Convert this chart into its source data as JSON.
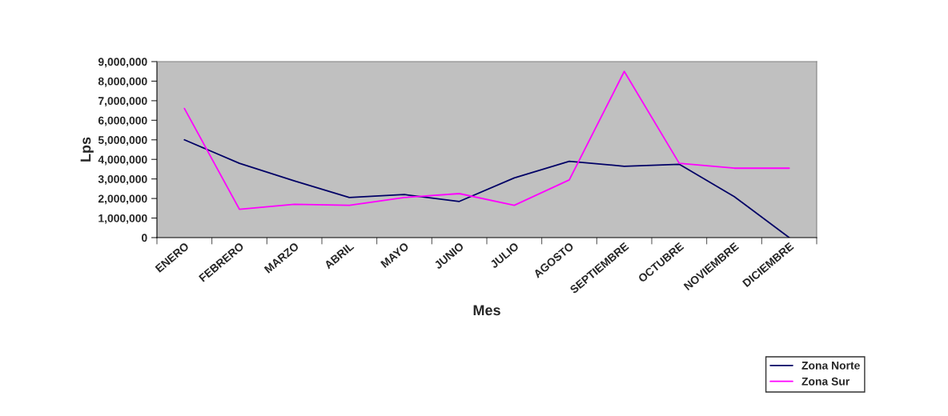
{
  "chart_data": {
    "type": "line",
    "xlabel": "Mes",
    "ylabel": "Lps",
    "categories": [
      "ENERO",
      "FEBRERO",
      "MARZO",
      "ABRIL",
      "MAYO",
      "JUNIO",
      "JULIO",
      "AGOSTO",
      "SEPTIEMBRE",
      "OCTUBRE",
      "NOVIEMBRE",
      "DICIEMBRE"
    ],
    "series": [
      {
        "name": "Zona Norte",
        "color": "#000066",
        "values": [
          5000000,
          3800000,
          2900000,
          2050000,
          2200000,
          1850000,
          3050000,
          3900000,
          3650000,
          3750000,
          2100000,
          0
        ]
      },
      {
        "name": "Zona Sur",
        "color": "#ff00ff",
        "values": [
          6600000,
          1450000,
          1700000,
          1650000,
          2050000,
          2250000,
          1650000,
          2950000,
          8500000,
          3800000,
          3550000,
          3550000
        ]
      }
    ],
    "ylim": [
      0,
      9000000
    ],
    "yticks": [
      {
        "value": 0,
        "label": "0"
      },
      {
        "value": 1000000,
        "label": "1,000,000"
      },
      {
        "value": 2000000,
        "label": "2,000,000"
      },
      {
        "value": 3000000,
        "label": "3,000,000"
      },
      {
        "value": 4000000,
        "label": "4,000,000"
      },
      {
        "value": 5000000,
        "label": "5,000,000"
      },
      {
        "value": 6000000,
        "label": "6,000,000"
      },
      {
        "value": 7000000,
        "label": "7,000,000"
      },
      {
        "value": 8000000,
        "label": "8,000,000"
      },
      {
        "value": 9000000,
        "label": "9,000,000"
      }
    ],
    "grid": false,
    "legend": "bottom right",
    "marker": "none",
    "line_style": "solid"
  }
}
